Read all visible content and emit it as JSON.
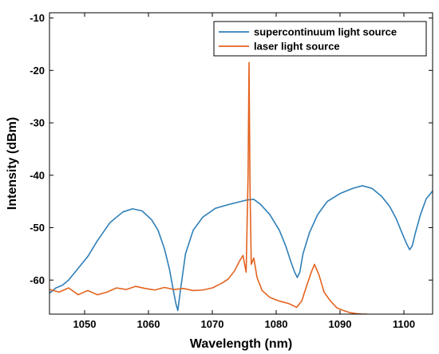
{
  "chart_data": {
    "type": "line",
    "title": "",
    "xlabel": "Wavelength (nm)",
    "ylabel": "Intensity (dBm)",
    "xlim": [
      1044.5,
      1104.5
    ],
    "ylim": [
      -66.5,
      -9
    ],
    "xticks": [
      1050,
      1060,
      1070,
      1080,
      1090,
      1100
    ],
    "yticks": [
      -10,
      -20,
      -30,
      -40,
      -50,
      -60
    ],
    "grid": false,
    "legend_position": "top-right",
    "series": [
      {
        "name": "supercontinuum light source",
        "color": "#2f7fb8",
        "x": [
          1044.5,
          1045.5,
          1046.5,
          1047.5,
          1048.5,
          1049.5,
          1050.5,
          1052,
          1054,
          1056,
          1057.5,
          1059,
          1060.5,
          1061.5,
          1062.5,
          1063.3,
          1063.9,
          1064.3,
          1064.6,
          1065.0,
          1065.8,
          1067,
          1068.5,
          1070.5,
          1072.5,
          1074.5,
          1075.5,
          1076.5,
          1077.5,
          1079,
          1080.5,
          1081.5,
          1082.3,
          1082.9,
          1083.3,
          1083.7,
          1084.2,
          1085.2,
          1086.5,
          1088,
          1090,
          1092,
          1093.5,
          1095,
          1096.5,
          1097.8,
          1098.8,
          1099.7,
          1100.4,
          1100.9,
          1101.3,
          1101.8,
          1102.6,
          1103.5,
          1104.5
        ],
        "y": [
          -62.5,
          -61.5,
          -61,
          -60,
          -58.5,
          -57,
          -55.5,
          -52.5,
          -49,
          -47,
          -46.4,
          -46.8,
          -48.5,
          -50.5,
          -54,
          -58,
          -62,
          -64.5,
          -65.8,
          -62,
          -55,
          -50.5,
          -48,
          -46.3,
          -45.6,
          -45,
          -44.7,
          -44.6,
          -45.5,
          -47.5,
          -50.5,
          -53.5,
          -56.5,
          -58.5,
          -59.5,
          -58.5,
          -55,
          -51,
          -47.5,
          -45,
          -43.5,
          -42.5,
          -42,
          -42.5,
          -44,
          -46,
          -48.3,
          -51,
          -53,
          -54.2,
          -53.5,
          -51,
          -47.5,
          -44.5,
          -43
        ]
      },
      {
        "name": "laser light source",
        "color": "#e3631f",
        "x": [
          1044.5,
          1046,
          1047.5,
          1049,
          1050.5,
          1052,
          1053.5,
          1055,
          1056.5,
          1058,
          1059.5,
          1061,
          1062.5,
          1064,
          1065.5,
          1067,
          1068.5,
          1070,
          1071.5,
          1072.5,
          1073.5,
          1074.2,
          1074.8,
          1075.3,
          1075.6,
          1075.75,
          1075.9,
          1076.1,
          1076.5,
          1077,
          1077.8,
          1079,
          1080.5,
          1082,
          1083.2,
          1084,
          1084.8,
          1085.5,
          1086,
          1086.7,
          1087.5,
          1088.5,
          1089.5,
          1090.5,
          1091.5,
          1092.5,
          1093.5,
          1094.3
        ],
        "y": [
          -61.8,
          -62.3,
          -61.5,
          -62.8,
          -62,
          -62.8,
          -62.3,
          -61.5,
          -61.8,
          -61.2,
          -61.6,
          -61.9,
          -61.4,
          -61.8,
          -61.6,
          -62,
          -61.9,
          -61.5,
          -60.6,
          -59.8,
          -58.2,
          -56.5,
          -55.3,
          -58.5,
          -40,
          -18.5,
          -42,
          -57,
          -55.8,
          -59.5,
          -62,
          -63.3,
          -64,
          -64.5,
          -65.2,
          -64,
          -61,
          -58.5,
          -57,
          -59,
          -62.3,
          -64,
          -65.3,
          -65.8,
          -66.2,
          -66.4,
          -66.5,
          -66.5
        ]
      }
    ]
  }
}
